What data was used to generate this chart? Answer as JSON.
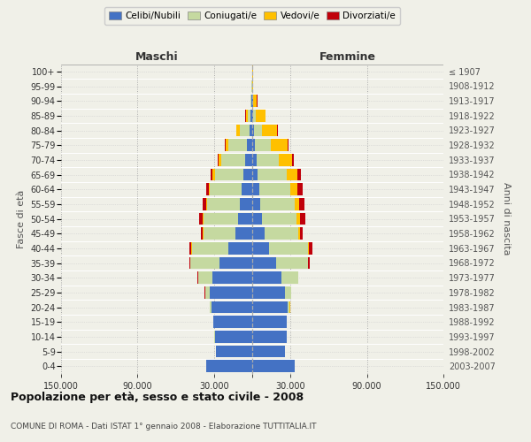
{
  "age_groups": [
    "0-4",
    "5-9",
    "10-14",
    "15-19",
    "20-24",
    "25-29",
    "30-34",
    "35-39",
    "40-44",
    "45-49",
    "50-54",
    "55-59",
    "60-64",
    "65-69",
    "70-74",
    "75-79",
    "80-84",
    "85-89",
    "90-94",
    "95-99",
    "100+"
  ],
  "birth_years": [
    "2003-2007",
    "1998-2002",
    "1993-1997",
    "1988-1992",
    "1983-1987",
    "1978-1982",
    "1973-1977",
    "1968-1972",
    "1963-1967",
    "1958-1962",
    "1953-1957",
    "1948-1952",
    "1943-1947",
    "1938-1942",
    "1933-1937",
    "1928-1932",
    "1923-1927",
    "1918-1922",
    "1913-1917",
    "1908-1912",
    "≤ 1907"
  ],
  "colors": {
    "celibi": "#4472C4",
    "coniugati": "#c5d9a0",
    "vedovi": "#ffc000",
    "divorziati": "#c0000a"
  },
  "maschi": {
    "celibi": [
      36000,
      28500,
      29500,
      30500,
      32000,
      33000,
      31000,
      26000,
      19000,
      13000,
      11000,
      9500,
      8500,
      7000,
      5500,
      4000,
      2000,
      1200,
      600,
      250,
      120
    ],
    "coniugati": [
      20,
      20,
      40,
      200,
      1400,
      3800,
      11500,
      22500,
      28500,
      25500,
      27000,
      26000,
      24500,
      22500,
      18500,
      14500,
      7500,
      2200,
      500,
      180,
      80
    ],
    "vedovi": [
      10,
      10,
      10,
      20,
      60,
      220,
      60,
      120,
      250,
      450,
      700,
      900,
      1100,
      1600,
      2200,
      2200,
      3000,
      1800,
      600,
      150,
      50
    ],
    "divorziati": [
      5,
      5,
      5,
      10,
      60,
      160,
      450,
      850,
      1300,
      1100,
      2800,
      2700,
      2200,
      1600,
      1100,
      650,
      250,
      100,
      30,
      10,
      5
    ]
  },
  "femmine": {
    "celibi": [
      33000,
      26000,
      27000,
      27000,
      28000,
      26000,
      23000,
      19000,
      13500,
      9500,
      7500,
      6500,
      5500,
      4300,
      3200,
      2200,
      1400,
      700,
      350,
      120,
      60
    ],
    "coniugati": [
      25,
      25,
      50,
      200,
      1500,
      4300,
      13000,
      24500,
      30500,
      26500,
      27500,
      26500,
      24500,
      22500,
      17500,
      12500,
      6200,
      1800,
      450,
      90,
      40
    ],
    "vedovi": [
      10,
      10,
      10,
      20,
      35,
      90,
      120,
      350,
      700,
      1300,
      2200,
      3800,
      5500,
      8500,
      10500,
      13000,
      12000,
      8000,
      3000,
      700,
      250
    ],
    "divorziati": [
      5,
      5,
      5,
      10,
      55,
      110,
      320,
      1100,
      2700,
      2200,
      4300,
      4200,
      3800,
      2700,
      1600,
      900,
      250,
      100,
      30,
      10,
      5
    ]
  },
  "xlim": 150000,
  "xtick_positions": [
    -150000,
    -90000,
    -30000,
    0,
    30000,
    90000,
    150000
  ],
  "xtick_labels": [
    "150.000",
    "90.000",
    "30.000",
    "",
    "30.000",
    "90.000",
    "150.000"
  ],
  "title": "Popolazione per età, sesso e stato civile - 2008",
  "subtitle": "COMUNE DI ROMA - Dati ISTAT 1° gennaio 2008 - Elaborazione TUTTITALIA.IT",
  "ylabel_left": "Fasce di età",
  "ylabel_right": "Anni di nascita",
  "label_maschi": "Maschi",
  "label_femmine": "Femmine",
  "legend_labels": [
    "Celibi/Nubili",
    "Coniugati/e",
    "Vedovi/e",
    "Divorziati/e"
  ],
  "background_color": "#f0f0e8",
  "plot_background": "#f0f0e8",
  "bar_height": 0.82
}
